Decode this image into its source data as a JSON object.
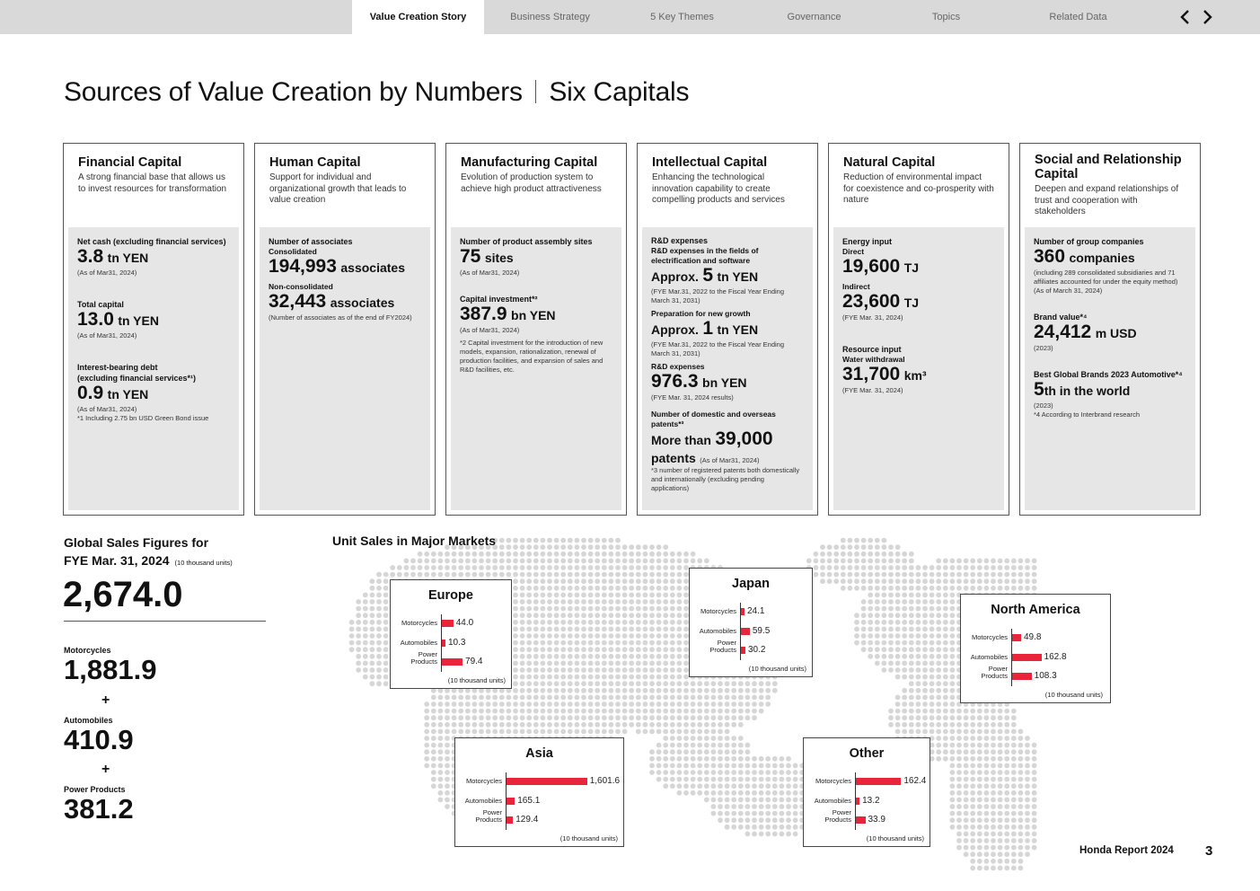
{
  "nav": {
    "tabs": [
      {
        "label": "Value Creation Story",
        "active": true
      },
      {
        "label": "Business Strategy",
        "active": false
      },
      {
        "label": "5 Key Themes",
        "active": false
      },
      {
        "label": "Governance",
        "active": false
      },
      {
        "label": "Topics",
        "active": false
      },
      {
        "label": "Related Data",
        "active": false
      }
    ],
    "prev_icon": "chevron-left-icon",
    "next_icon": "chevron-right-icon"
  },
  "page": {
    "title_part1": "Sources of Value Creation by Numbers",
    "title_part2": "Six Capitals"
  },
  "capitals": {
    "financial": {
      "name": "Financial Capital",
      "desc": "A strong financial base that allows us to invest resources for transformation",
      "net_cash_label": "Net cash (excluding financial services)",
      "net_cash_value": "3.8",
      "net_cash_unit": "tn YEN",
      "net_cash_note": "(As of Mar31, 2024)",
      "total_capital_label": "Total capital",
      "total_capital_value": "13.0",
      "total_capital_unit": "tn YEN",
      "total_capital_note": "(As of Mar31, 2024)",
      "debt_label": "Interest-bearing debt",
      "debt_label2": " (excluding financial services*¹)",
      "debt_value": "0.9",
      "debt_unit": "tn YEN",
      "debt_note": "(As of Mar31, 2024)",
      "footnote": "*1 Including 2.75 bn USD Green Bond issue"
    },
    "human": {
      "name": "Human Capital",
      "desc": "Support for individual and organizational growth that leads to value creation",
      "label": "Number of associates",
      "consolidated_label": "Consolidated",
      "consolidated_value": "194,993",
      "consolidated_unit": "associates",
      "nonconsolidated_label": "Non-consolidated",
      "nonconsolidated_value": "32,443",
      "nonconsolidated_unit": "associates",
      "note": "(Number of associates as of the end of FY2024)"
    },
    "manufacturing": {
      "name": "Manufacturing Capital",
      "desc": "Evolution of production system to achieve high product attractiveness",
      "sites_label": "Number of product assembly sites",
      "sites_value": "75",
      "sites_unit": "sites",
      "sites_note": "(As of Mar31, 2024)",
      "capex_label": "Capital investment*²",
      "capex_value": "387.9",
      "capex_unit": "bn YEN",
      "capex_note": "(As of Mar31, 2024)",
      "footnote": "*2 Capital investment for the introduction of new models, expansion, rationalization, renewal of production facilities, and expansion of sales and R&D facilities, etc."
    },
    "intellectual": {
      "name": "Intellectual Capital",
      "desc": "Enhancing the technological innovation capability to create compelling products and services",
      "rd_label": "R&D expenses",
      "rd1_label": "R&D expenses in the fields of electrification and software",
      "rd1_prefix": "Approx.",
      "rd1_value": "5",
      "rd1_unit": "tn YEN",
      "rd1_note": "(FYE Mar.31, 2022 to the Fiscal Year Ending March 31, 2031)",
      "rd2_label": "Preparation for new growth",
      "rd2_prefix": "Approx.",
      "rd2_value": "1",
      "rd2_unit": "tn YEN",
      "rd2_note": "(FYE Mar.31, 2022 to the Fiscal Year Ending March 31, 2031)",
      "rd3_label": "R&D expenses",
      "rd3_value": "976.3",
      "rd3_unit": "bn YEN",
      "rd3_note": "(FYE Mar. 31, 2024 results)",
      "patents_label": "Number of domestic and overseas patents*³",
      "patents_prefix": "More than",
      "patents_value": "39,000",
      "patents_unit": "patents",
      "patents_note": "(As of Mar31, 2024)",
      "footnote": "*3 number of registered patents both domestically and internationally (excluding pending applications)"
    },
    "natural": {
      "name": "Natural Capital",
      "desc": "Reduction of environmental impact for coexistence and co-prosperity with nature",
      "energy_label": "Energy input",
      "direct_label": "Direct",
      "direct_value": "19,600",
      "direct_unit": "TJ",
      "indirect_label": "Indirect",
      "indirect_value": "23,600",
      "indirect_unit": "TJ",
      "energy_note": "(FYE Mar. 31, 2024)",
      "resource_label": "Resource input",
      "water_label": "Water withdrawal",
      "water_value": "31,700",
      "water_unit": "km³",
      "water_note": "(FYE Mar. 31, 2024)"
    },
    "social": {
      "name": "Social and Relationship Capital",
      "desc": "Deepen and expand relationships of trust and cooperation with stakeholders",
      "group_label": "Number of group companies",
      "group_value": "360",
      "group_unit": "companies",
      "group_note": "(including 289 consolidated subsidiaries and 71 affiliates accounted for under the equity method)",
      "group_date": "(As of March 31, 2024)",
      "brand_label": "Brand value*⁴",
      "brand_value": "24,412",
      "brand_unit": "m USD",
      "brand_note": "(2023)",
      "bgb_label": "Best Global Brands 2023 Automotive*⁴",
      "bgb_value": "5",
      "bgb_unit": "th in the world",
      "bgb_note": "(2023)",
      "footnote": "*4 According to Interbrand research"
    }
  },
  "global_sales": {
    "title_line1": "Global Sales Figures for",
    "title_line2": "FYE Mar. 31, 2024",
    "unit": "(10 thousand units)",
    "total": "2,674.0",
    "motorcycles_label": "Motorcycles",
    "motorcycles_value": "1,881.9",
    "automobiles_label": "Automobiles",
    "automobiles_value": "410.9",
    "power_label": "Power Products",
    "power_value": "381.2",
    "plus": "+"
  },
  "unit_sales": {
    "title": "Unit Sales in Major Markets",
    "row_labels": [
      "Motorcycles",
      "Automobiles",
      "Power Products"
    ],
    "unit": "(10 thousand units)",
    "bar_color": "#e8253a"
  },
  "chart_data": [
    {
      "type": "bar",
      "title": "Europe",
      "categories": [
        "Motorcycles",
        "Automobiles",
        "Power Products"
      ],
      "values": [
        44.0,
        10.3,
        79.4
      ],
      "value_labels": [
        "44.0",
        "10.3",
        "79.4"
      ],
      "unit": "(10 thousand units)"
    },
    {
      "type": "bar",
      "title": "Japan",
      "categories": [
        "Motorcycles",
        "Automobiles",
        "Power Products"
      ],
      "values": [
        24.1,
        59.5,
        30.2
      ],
      "value_labels": [
        "24.1",
        "59.5",
        "30.2"
      ],
      "unit": "(10 thousand units)"
    },
    {
      "type": "bar",
      "title": "North America",
      "categories": [
        "Motorcycles",
        "Automobiles",
        "Power Products"
      ],
      "values": [
        49.8,
        162.8,
        108.3
      ],
      "value_labels": [
        "49.8",
        "162.8",
        "108.3"
      ],
      "unit": "(10 thousand units)"
    },
    {
      "type": "bar",
      "title": "Asia",
      "categories": [
        "Motorcycles",
        "Automobiles",
        "Power Products"
      ],
      "values": [
        1601.6,
        165.1,
        129.4
      ],
      "value_labels": [
        "1,601.6",
        "165.1",
        "129.4"
      ],
      "unit": "(10 thousand units)"
    },
    {
      "type": "bar",
      "title": "Other",
      "categories": [
        "Motorcycles",
        "Automobiles",
        "Power Products"
      ],
      "values": [
        162.4,
        13.2,
        33.9
      ],
      "value_labels": [
        "162.4",
        "13.2",
        "33.9"
      ],
      "unit": "(10 thousand units)"
    }
  ],
  "footer": {
    "report_name": "Honda Report 2024",
    "page_number": "3"
  }
}
